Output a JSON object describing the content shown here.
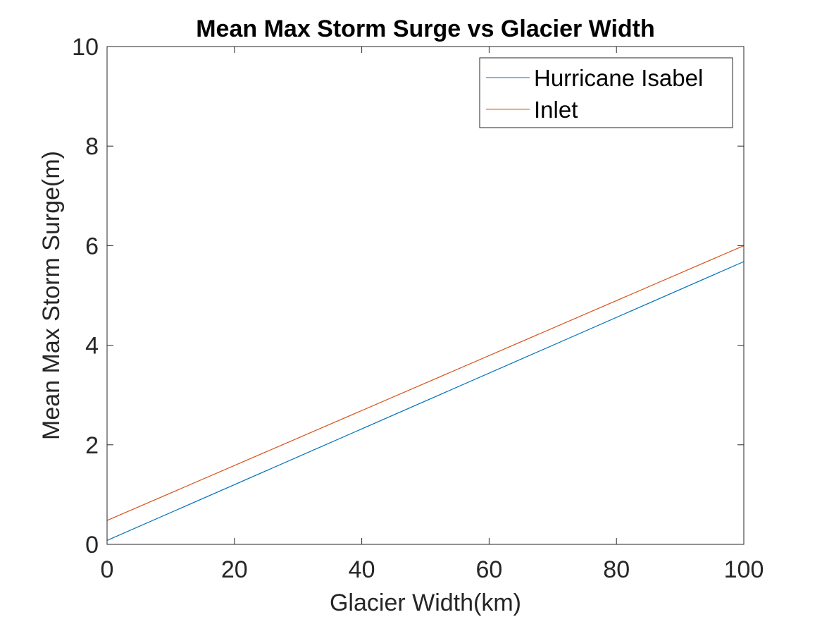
{
  "chart_data": {
    "type": "line",
    "title": "Mean Max Storm Surge vs Glacier Width",
    "xlabel": "Glacier Width(km)",
    "ylabel": "Mean Max Storm Surge(m)",
    "xlim": [
      0,
      100
    ],
    "ylim": [
      0,
      10
    ],
    "xticks": [
      0,
      20,
      40,
      60,
      80,
      100
    ],
    "yticks": [
      0,
      2,
      4,
      6,
      8,
      10
    ],
    "xtick_labels": [
      "0",
      "20",
      "40",
      "60",
      "80",
      "100"
    ],
    "ytick_labels": [
      "0",
      "2",
      "4",
      "6",
      "8",
      "10"
    ],
    "grid": false,
    "legend_position": "top-right",
    "series": [
      {
        "name": "Hurricane Isabel",
        "color": "#0072BD",
        "x": [
          0,
          100
        ],
        "y": [
          0.08,
          5.68
        ]
      },
      {
        "name": "Inlet",
        "color": "#D95319",
        "x": [
          0,
          100
        ],
        "y": [
          0.48,
          6.0
        ]
      }
    ]
  }
}
